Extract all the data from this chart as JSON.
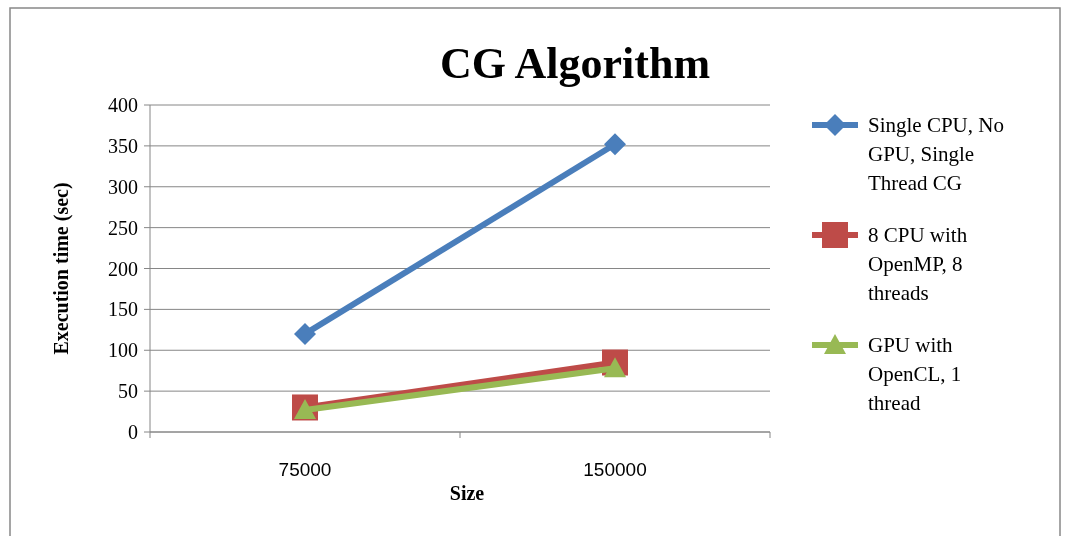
{
  "chart_data": {
    "type": "line",
    "title": "CG Algorithm",
    "xlabel": "Size",
    "ylabel": "Execution time (sec)",
    "categories": [
      "75000",
      "150000"
    ],
    "series": [
      {
        "name": "Single CPU, No GPU, Single Thread CG",
        "color": "#4a7ebb",
        "marker": "diamond",
        "values": [
          120,
          352
        ]
      },
      {
        "name": "8 CPU with OpenMP, 8 threads",
        "color": "#be4b48",
        "marker": "square",
        "values": [
          30,
          85
        ]
      },
      {
        "name": "GPU with OpenCL, 1 thread",
        "color": "#98b954",
        "marker": "triangle",
        "values": [
          27,
          78
        ]
      }
    ],
    "ylim": [
      0,
      400
    ],
    "yticks": [
      0,
      50,
      100,
      150,
      200,
      250,
      300,
      350,
      400
    ],
    "grid": "y",
    "legend": "right"
  }
}
